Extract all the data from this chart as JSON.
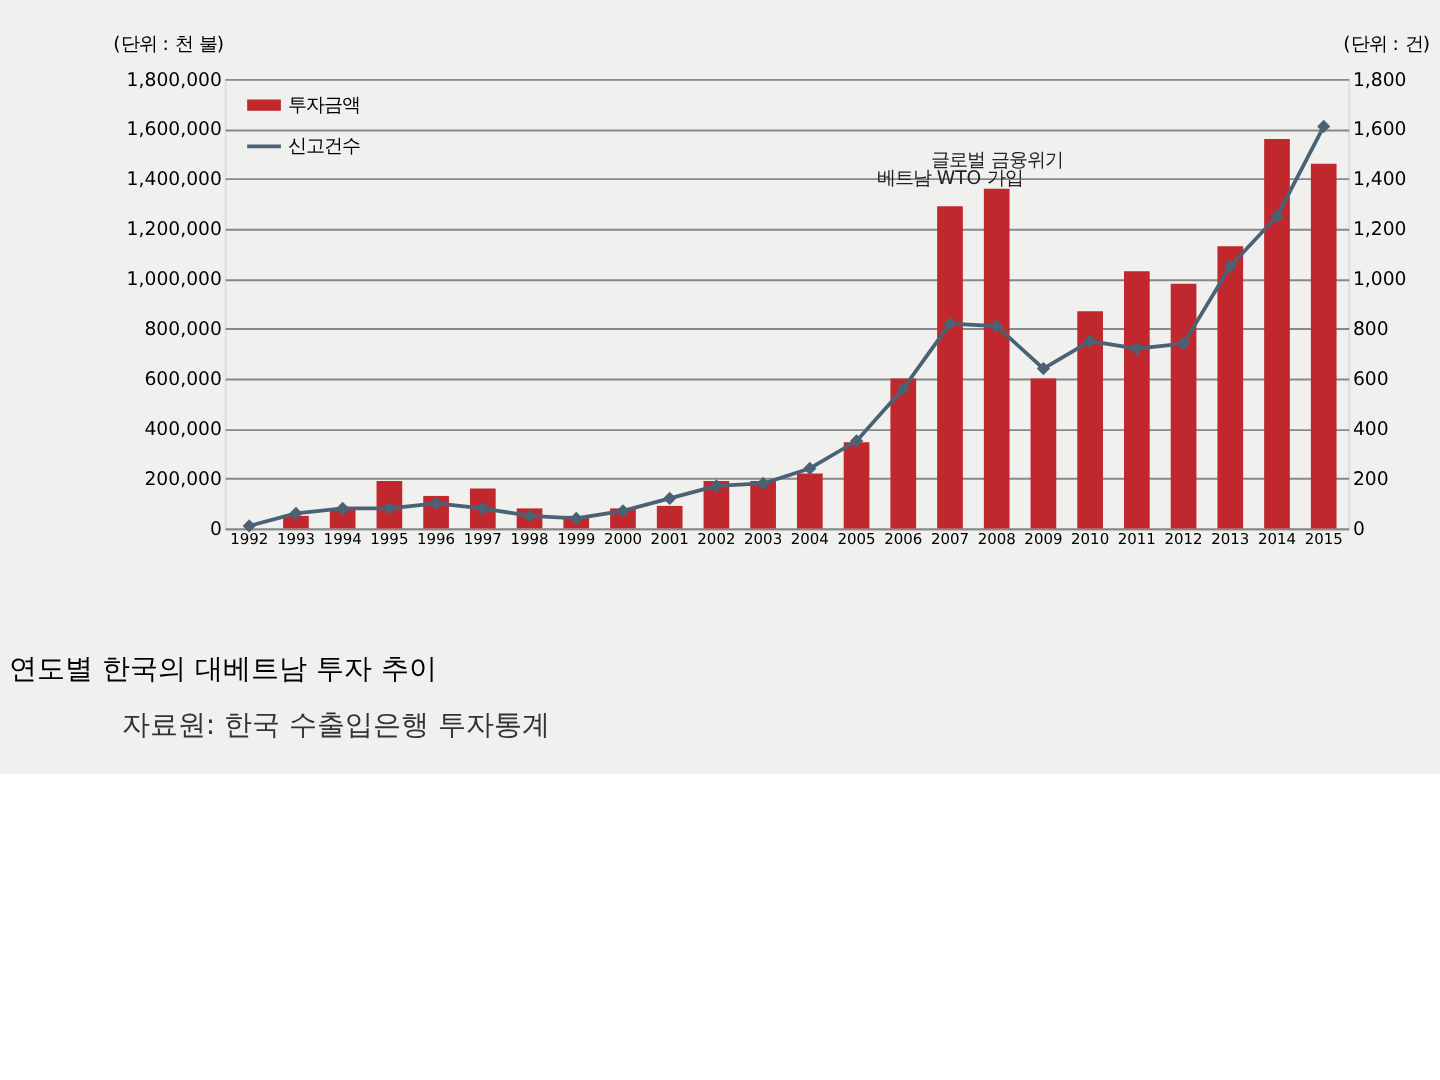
{
  "chart_data": {
    "type": "bar",
    "title": "연도별 한국의 대베트남 투자 추이",
    "ylabel": "(단위 : 천 불)",
    "y2label": "(단위 : 건)",
    "categories": [
      "1992",
      "1993",
      "1994",
      "1995",
      "1996",
      "1997",
      "1998",
      "1999",
      "2000",
      "2001",
      "2002",
      "2003",
      "2004",
      "2005",
      "2006",
      "2007",
      "2008",
      "2009",
      "2010",
      "2011",
      "2012",
      "2013",
      "2014",
      "2015"
    ],
    "series": [
      {
        "name": "투자금액",
        "color": "#c0282d",
        "values": [
          null,
          50000,
          80000,
          190000,
          130000,
          160000,
          80000,
          50000,
          80000,
          90000,
          190000,
          190000,
          220000,
          345000,
          600000,
          1290000,
          1360000,
          600000,
          870000,
          1030000,
          980000,
          1130000,
          1560000,
          1460000
        ]
      },
      {
        "name": "신고건수",
        "type": "line",
        "axis": "y2",
        "color": "#4a6274",
        "marker": "diamond",
        "values": [
          10,
          60,
          80,
          80,
          100,
          80,
          50,
          40,
          70,
          120,
          170,
          180,
          240,
          350,
          560,
          820,
          810,
          640,
          750,
          720,
          740,
          1050,
          1250,
          1610
        ]
      }
    ],
    "ylim": [
      0,
      1800000
    ],
    "yticks": [
      {
        "value": 0,
        "label": "0"
      },
      {
        "value": 200000,
        "label": "200,000"
      },
      {
        "value": 400000,
        "label": "400,000"
      },
      {
        "value": 600000,
        "label": "600,000"
      },
      {
        "value": 800000,
        "label": "800,000"
      },
      {
        "value": 1000000,
        "label": "1,000,000"
      },
      {
        "value": 1200000,
        "label": "1,200,000"
      },
      {
        "value": 1400000,
        "label": "1,400,000"
      },
      {
        "value": 1600000,
        "label": "1,600,000"
      },
      {
        "value": 1800000,
        "label": "1,800,000"
      }
    ],
    "y2lim": [
      0,
      1800
    ],
    "y2ticks": [
      0,
      200,
      400,
      600,
      800,
      {
        "value": 1000,
        "label": "1,000"
      },
      {
        "value": 1200,
        "label": "1,200"
      },
      {
        "value": 1400,
        "label": "1,400"
      },
      {
        "value": 1600,
        "label": "1,600"
      },
      {
        "value": 1800,
        "label": "1,800"
      }
    ],
    "grid": "y",
    "legend": "top left",
    "annotations": [
      {
        "text": "베트남 WTO 가입",
        "x": "2007",
        "y": 1290000
      },
      {
        "text": "글로벌 금융위기",
        "x": "2008",
        "y": 1360000
      },
      "자료원: 한국 수출입은행 투자통계"
    ]
  }
}
